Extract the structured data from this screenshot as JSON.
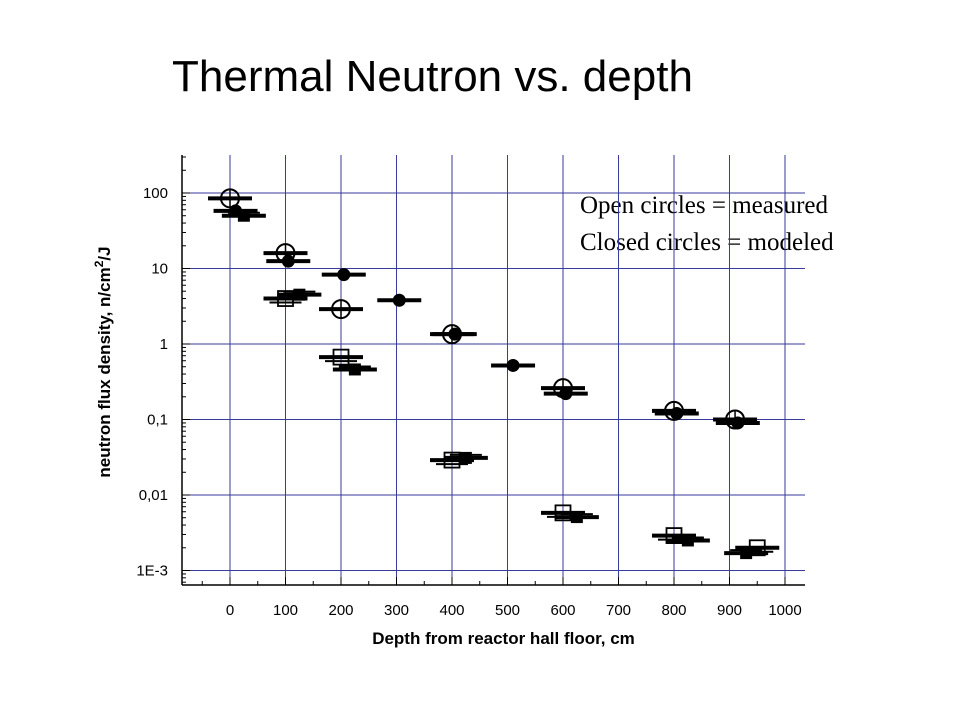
{
  "slide": {
    "title": "Thermal Neutron vs. depth",
    "notes": [
      "Open circles = measured",
      "Closed circles = modeled"
    ]
  },
  "chart_data": {
    "type": "scatter",
    "title": "",
    "xlabel": "Depth from reactor hall floor, cm",
    "ylabel_parts": [
      "neutron flux density, n/cm",
      "2",
      "/J"
    ],
    "xlim": [
      -90,
      1030
    ],
    "ylog": true,
    "ylim": [
      0.0006,
      330
    ],
    "x_ticks": [
      0,
      100,
      200,
      300,
      400,
      500,
      600,
      700,
      800,
      900,
      1000
    ],
    "x_tick_labels": [
      "0",
      "100",
      "200",
      "300",
      "400",
      "500",
      "600",
      "700",
      "800",
      "900",
      "1000"
    ],
    "y_ticks": [
      100,
      10,
      1,
      0.1,
      0.01,
      0.001
    ],
    "y_tick_labels": [
      "100",
      "10",
      "1",
      "0,1",
      "0,01",
      "1E-3"
    ],
    "grid": true,
    "colors": {
      "grid": "#3a3a9a",
      "axis": "#000000",
      "marker": "#000000"
    },
    "series": [
      {
        "marker": "open-circle",
        "points": [
          [
            0,
            85
          ],
          [
            100,
            16
          ],
          [
            200,
            2.9
          ],
          [
            400,
            1.35
          ],
          [
            600,
            0.26
          ],
          [
            800,
            0.13
          ],
          [
            910,
            0.1
          ]
        ]
      },
      {
        "marker": "closed-circle",
        "points": [
          [
            10,
            58
          ],
          [
            105,
            12.5
          ],
          [
            205,
            8.3
          ],
          [
            305,
            3.8
          ],
          [
            405,
            1.35
          ],
          [
            510,
            0.52
          ],
          [
            605,
            0.22
          ],
          [
            805,
            0.12
          ],
          [
            915,
            0.09
          ]
        ]
      },
      {
        "marker": "open-square",
        "points": [
          [
            100,
            4.0
          ],
          [
            200,
            0.67
          ],
          [
            400,
            0.029
          ],
          [
            600,
            0.0058
          ],
          [
            800,
            0.0029
          ],
          [
            950,
            0.002
          ]
        ]
      },
      {
        "marker": "closed-square",
        "points": [
          [
            25,
            50
          ],
          [
            125,
            4.5
          ],
          [
            225,
            0.46
          ],
          [
            425,
            0.031
          ],
          [
            625,
            0.0051
          ],
          [
            825,
            0.0025
          ],
          [
            930,
            0.0017
          ]
        ]
      }
    ]
  }
}
